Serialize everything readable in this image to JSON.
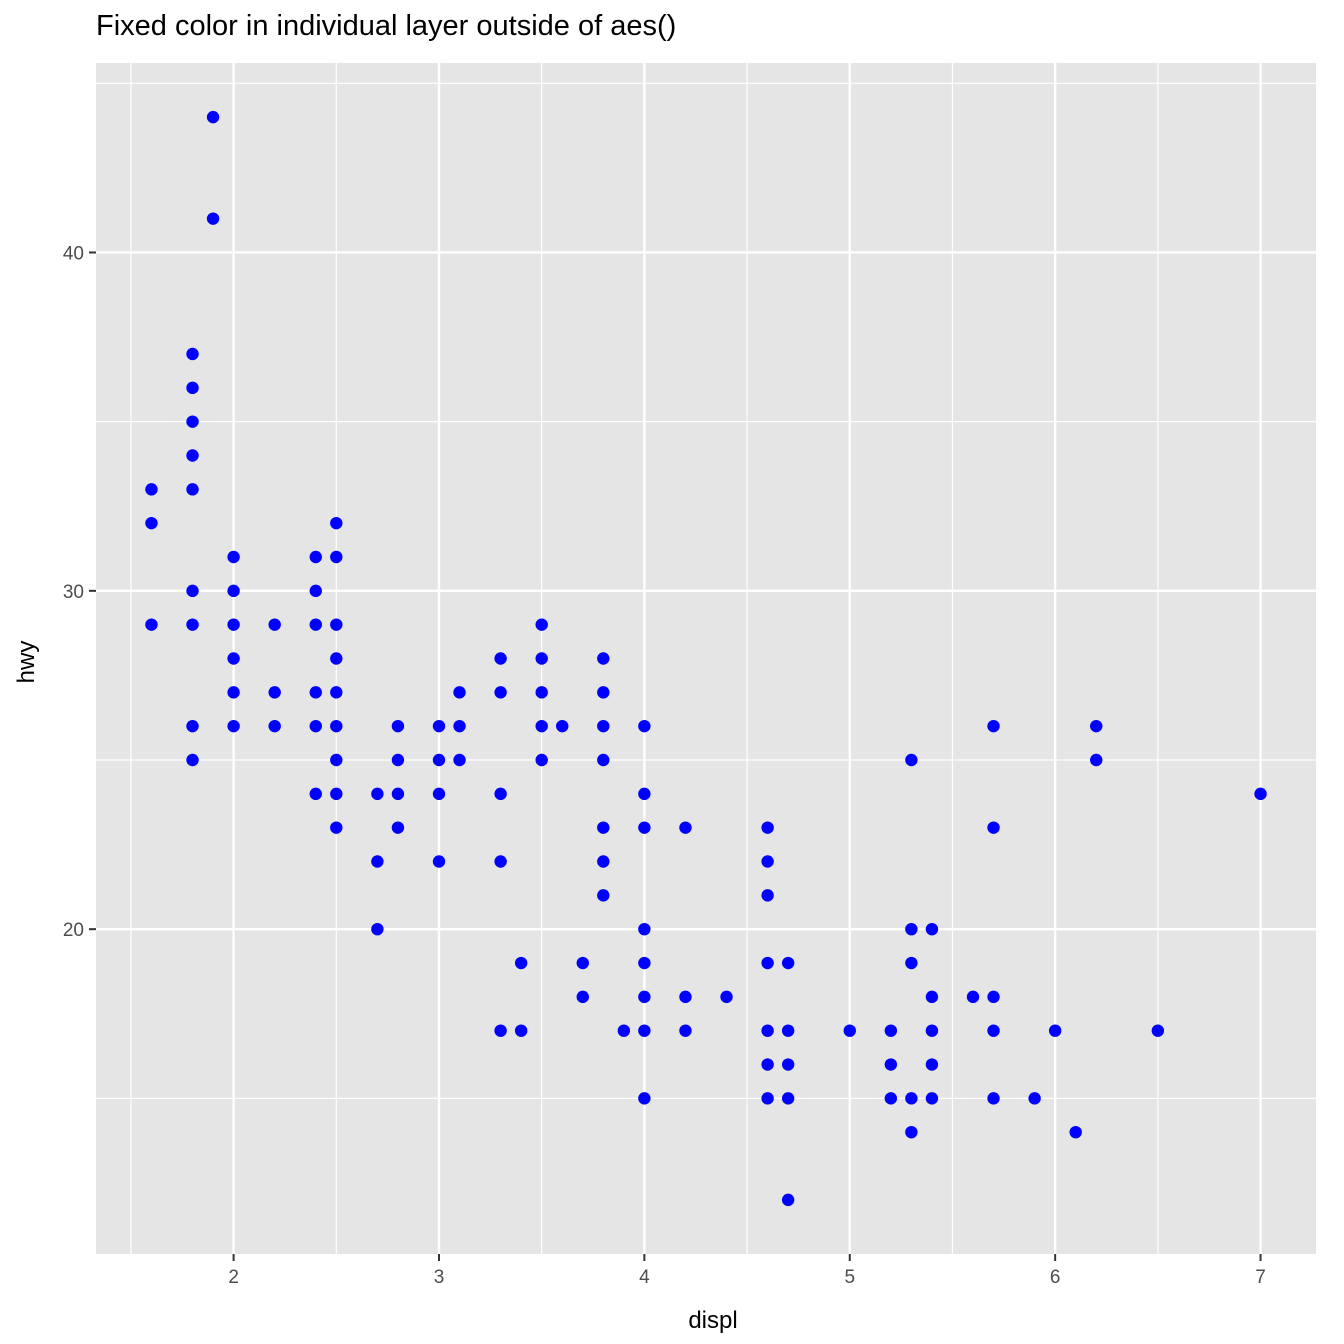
{
  "chart_data": {
    "type": "scatter",
    "title": "Fixed color in individual layer outside of aes()",
    "xlabel": "displ",
    "ylabel": "hwy",
    "xlim": [
      1.33,
      7.27
    ],
    "ylim": [
      10.4,
      45.6
    ],
    "x_ticks": [
      2,
      3,
      4,
      5,
      6,
      7
    ],
    "y_ticks": [
      20,
      30,
      40
    ],
    "x_tick_labels": [
      "2",
      "3",
      "4",
      "5",
      "6",
      "7"
    ],
    "y_tick_labels": [
      "20",
      "30",
      "40"
    ],
    "grid": true,
    "point_color": "#0000ff",
    "panel_color": "#e5e5e5",
    "gridline_color": "#ffffff",
    "points": [
      [
        1.6,
        33
      ],
      [
        1.6,
        32
      ],
      [
        1.6,
        29
      ],
      [
        1.8,
        37
      ],
      [
        1.8,
        36
      ],
      [
        1.8,
        35
      ],
      [
        1.8,
        34
      ],
      [
        1.8,
        33
      ],
      [
        1.8,
        30
      ],
      [
        1.8,
        29
      ],
      [
        1.8,
        26
      ],
      [
        1.8,
        25
      ],
      [
        1.9,
        44
      ],
      [
        1.9,
        41
      ],
      [
        2.0,
        31
      ],
      [
        2.0,
        30
      ],
      [
        2.0,
        29
      ],
      [
        2.0,
        28
      ],
      [
        2.0,
        27
      ],
      [
        2.0,
        26
      ],
      [
        2.2,
        29
      ],
      [
        2.2,
        27
      ],
      [
        2.2,
        26
      ],
      [
        2.4,
        31
      ],
      [
        2.4,
        30
      ],
      [
        2.4,
        29
      ],
      [
        2.4,
        27
      ],
      [
        2.4,
        26
      ],
      [
        2.4,
        24
      ],
      [
        2.5,
        32
      ],
      [
        2.5,
        31
      ],
      [
        2.5,
        29
      ],
      [
        2.5,
        28
      ],
      [
        2.5,
        27
      ],
      [
        2.5,
        26
      ],
      [
        2.5,
        25
      ],
      [
        2.5,
        24
      ],
      [
        2.5,
        23
      ],
      [
        2.7,
        24
      ],
      [
        2.7,
        22
      ],
      [
        2.7,
        20
      ],
      [
        2.8,
        26
      ],
      [
        2.8,
        25
      ],
      [
        2.8,
        24
      ],
      [
        2.8,
        23
      ],
      [
        3.0,
        26
      ],
      [
        3.0,
        25
      ],
      [
        3.0,
        24
      ],
      [
        3.0,
        22
      ],
      [
        3.1,
        27
      ],
      [
        3.1,
        26
      ],
      [
        3.1,
        25
      ],
      [
        3.3,
        28
      ],
      [
        3.3,
        27
      ],
      [
        3.3,
        24
      ],
      [
        3.3,
        22
      ],
      [
        3.3,
        17
      ],
      [
        3.4,
        19
      ],
      [
        3.4,
        17
      ],
      [
        3.5,
        29
      ],
      [
        3.5,
        28
      ],
      [
        3.5,
        27
      ],
      [
        3.5,
        26
      ],
      [
        3.5,
        25
      ],
      [
        3.6,
        26
      ],
      [
        3.7,
        19
      ],
      [
        3.7,
        18
      ],
      [
        3.8,
        28
      ],
      [
        3.8,
        27
      ],
      [
        3.8,
        26
      ],
      [
        3.8,
        25
      ],
      [
        3.8,
        23
      ],
      [
        3.8,
        22
      ],
      [
        3.8,
        21
      ],
      [
        3.9,
        17
      ],
      [
        4.0,
        26
      ],
      [
        4.0,
        24
      ],
      [
        4.0,
        23
      ],
      [
        4.0,
        20
      ],
      [
        4.0,
        19
      ],
      [
        4.0,
        18
      ],
      [
        4.0,
        17
      ],
      [
        4.0,
        15
      ],
      [
        4.2,
        23
      ],
      [
        4.2,
        18
      ],
      [
        4.2,
        17
      ],
      [
        4.4,
        18
      ],
      [
        4.6,
        23
      ],
      [
        4.6,
        22
      ],
      [
        4.6,
        21
      ],
      [
        4.6,
        19
      ],
      [
        4.6,
        17
      ],
      [
        4.6,
        16
      ],
      [
        4.6,
        15
      ],
      [
        4.7,
        19
      ],
      [
        4.7,
        17
      ],
      [
        4.7,
        16
      ],
      [
        4.7,
        15
      ],
      [
        4.7,
        12
      ],
      [
        5.0,
        17
      ],
      [
        5.2,
        17
      ],
      [
        5.2,
        16
      ],
      [
        5.2,
        15
      ],
      [
        5.3,
        25
      ],
      [
        5.3,
        20
      ],
      [
        5.3,
        19
      ],
      [
        5.3,
        15
      ],
      [
        5.3,
        14
      ],
      [
        5.4,
        20
      ],
      [
        5.4,
        18
      ],
      [
        5.4,
        17
      ],
      [
        5.4,
        16
      ],
      [
        5.4,
        15
      ],
      [
        5.6,
        18
      ],
      [
        5.7,
        26
      ],
      [
        5.7,
        23
      ],
      [
        5.7,
        18
      ],
      [
        5.7,
        17
      ],
      [
        5.7,
        15
      ],
      [
        5.9,
        15
      ],
      [
        6.0,
        17
      ],
      [
        6.1,
        14
      ],
      [
        6.2,
        26
      ],
      [
        6.2,
        25
      ],
      [
        6.5,
        17
      ],
      [
        7.0,
        24
      ]
    ]
  }
}
